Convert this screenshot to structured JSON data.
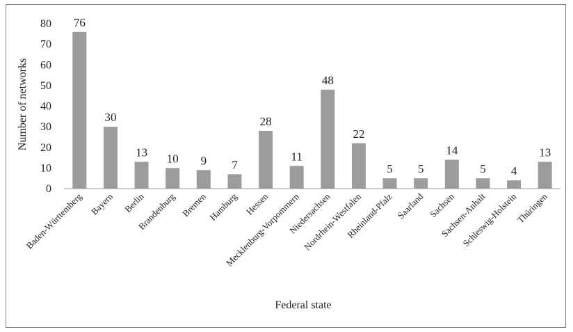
{
  "chart_data": {
    "type": "bar",
    "title": "",
    "xlabel": "Federal state",
    "ylabel": "Number of networks",
    "ylim": [
      0,
      80
    ],
    "yticks": [
      0,
      10,
      20,
      30,
      40,
      50,
      60,
      70,
      80
    ],
    "grid": false,
    "legend": "none",
    "bar_color": "#9c9c9c",
    "categories": [
      "Baden-Württemberg",
      "Bayern",
      "Berlin",
      "Brandenburg",
      "Bremen",
      "Hamburg",
      "Hessen",
      "Mecklenburg-Vorpommern",
      "Niedersachsen",
      "Nordrhein-Westfalen",
      "Rheinland-Pfalz",
      "Saarland",
      "Sachsen",
      "Sachsen-Anhalt",
      "Schleswig-Holstein",
      "Thüringen"
    ],
    "values": [
      76,
      30,
      13,
      10,
      9,
      7,
      28,
      11,
      48,
      22,
      5,
      5,
      14,
      5,
      4,
      13
    ]
  }
}
